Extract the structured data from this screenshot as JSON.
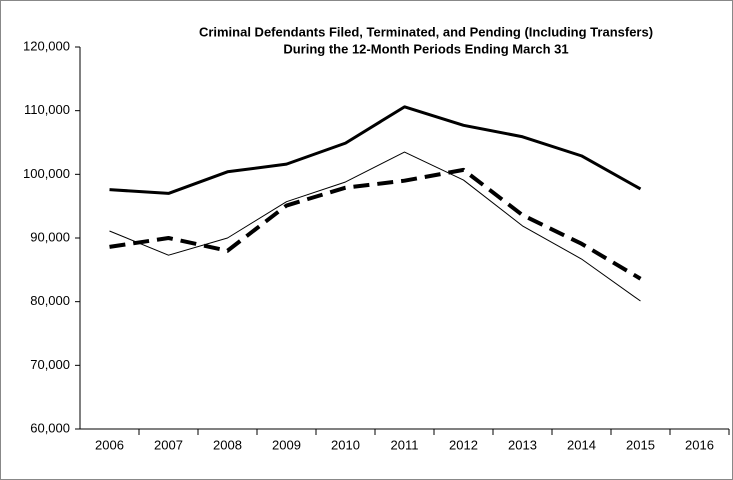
{
  "chart_data": {
    "type": "line",
    "title": [
      "Criminal Defendants Filed, Terminated, and Pending (Including Transfers)",
      "During the 12-Month Periods Ending March 31"
    ],
    "categories": [
      "2006",
      "2007",
      "2008",
      "2009",
      "2010",
      "2011",
      "2012",
      "2013",
      "2014",
      "2015",
      "2016"
    ],
    "series": [
      {
        "color": "#000000",
        "style": "solid-thick",
        "values": [
          97600,
          97000,
          100400,
          101600,
          104900,
          110600,
          107700,
          105900,
          102900,
          97700,
          null
        ]
      },
      {
        "color": "#000000",
        "style": "solid-thin",
        "values": [
          91100,
          87300,
          90000,
          95700,
          98800,
          103500,
          99100,
          91900,
          86700,
          80100,
          null
        ]
      },
      {
        "color": "#000000",
        "style": "dashed",
        "values": [
          88600,
          90000,
          88000,
          95100,
          97900,
          99000,
          100700,
          93600,
          89100,
          83600,
          null
        ]
      }
    ],
    "ylim": [
      60000,
      120000
    ],
    "yticks": [
      {
        "value": 60000,
        "label": "60,000"
      },
      {
        "value": 70000,
        "label": "70,000"
      },
      {
        "value": 80000,
        "label": "80,000"
      },
      {
        "value": 90000,
        "label": "90,000"
      },
      {
        "value": 100000,
        "label": "100,000"
      },
      {
        "value": 110000,
        "label": "110,000"
      },
      {
        "value": 120000,
        "label": "120,000"
      }
    ],
    "grid": false
  }
}
